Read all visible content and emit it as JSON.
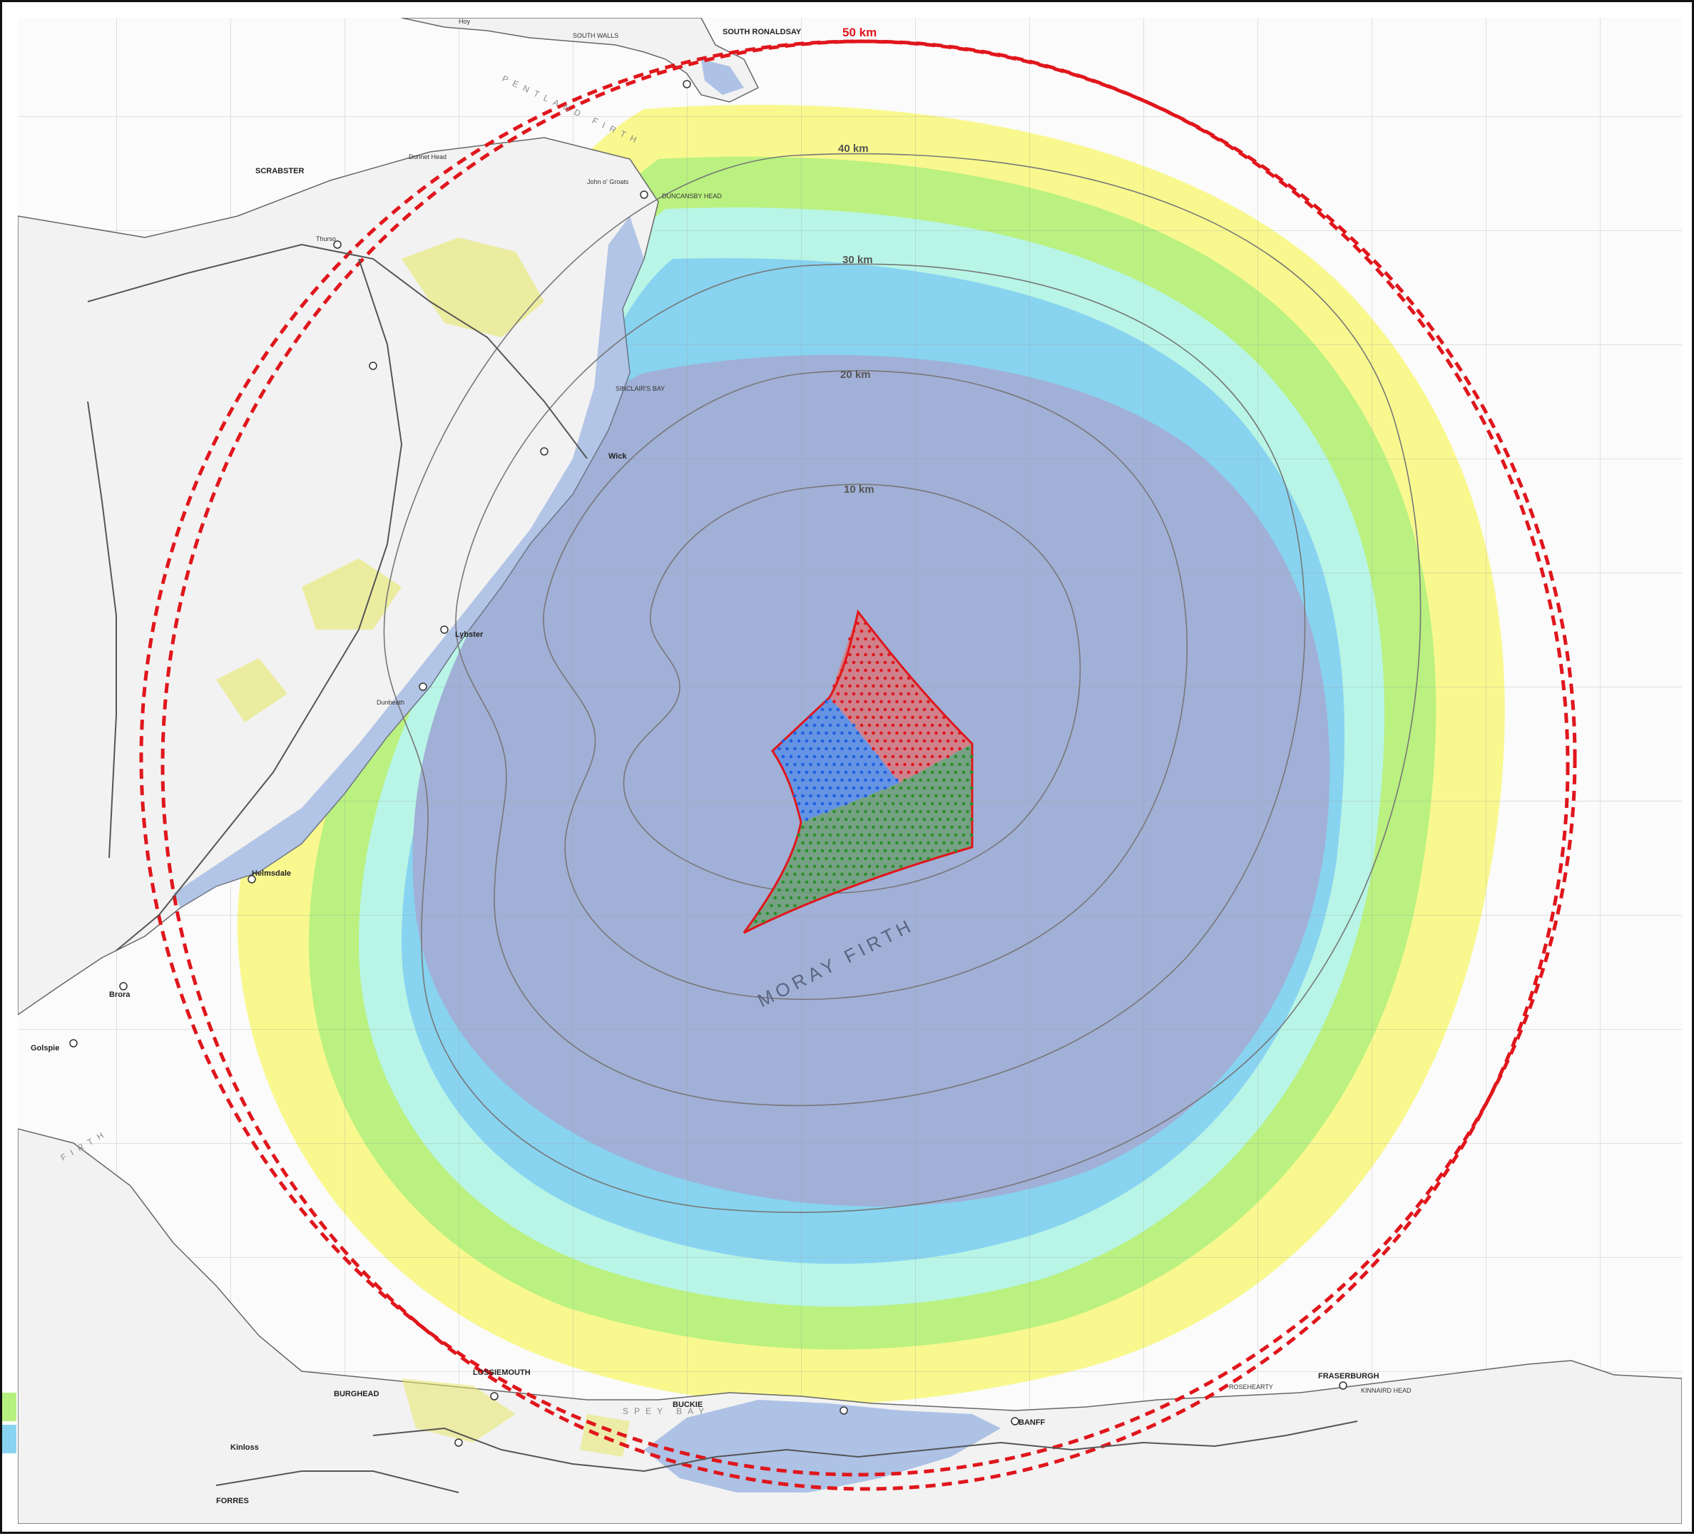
{
  "map": {
    "type": "zone-of-theoretical-visibility map",
    "colors": {
      "red_boundary": "#e0161c",
      "zone_1": "#8fa4d4",
      "zone_2": "#88d3f0",
      "zone_3": "#b8f5e6",
      "zone_4": "#b6f07f",
      "zone_5": "#f7f786",
      "array_red": "#d77a7e",
      "array_blue": "#5a8fe6",
      "array_green": "#6f9f77"
    },
    "rings": [
      {
        "label": "10 km"
      },
      {
        "label": "20 km"
      },
      {
        "label": "30 km"
      },
      {
        "label": "40 km"
      },
      {
        "label": "50 km"
      }
    ],
    "sea_labels": {
      "moray_firth": "MORAY FIRTH",
      "pentland_firth": "PENTLAND FIRTH",
      "dornoch_firth": "FIRTH"
    },
    "places": [
      {
        "name": "SOUTH RONALDSAY"
      },
      {
        "name": "SOUTH WALLS"
      },
      {
        "name": "DUNCANSBY HEAD"
      },
      {
        "name": "SINCLAIR'S BAY"
      },
      {
        "name": "SCRABSTER"
      },
      {
        "name": "Thurso"
      },
      {
        "name": "Wick"
      },
      {
        "name": "Lybster"
      },
      {
        "name": "Dunbeath"
      },
      {
        "name": "Helmsdale"
      },
      {
        "name": "Brora"
      },
      {
        "name": "Golspie"
      },
      {
        "name": "LOSSIEMOUTH"
      },
      {
        "name": "BURGHEAD"
      },
      {
        "name": "BUCKIE"
      },
      {
        "name": "BANFF"
      },
      {
        "name": "FRASERBURGH"
      },
      {
        "name": "KINNAIRD HEAD"
      },
      {
        "name": "ROSEHEARTY"
      },
      {
        "name": "SPEY BAY"
      },
      {
        "name": "Kinloss"
      },
      {
        "name": "FORRES"
      },
      {
        "name": "Hoy"
      },
      {
        "name": "Dunnet Head"
      },
      {
        "name": "John o' Groats"
      }
    ]
  }
}
